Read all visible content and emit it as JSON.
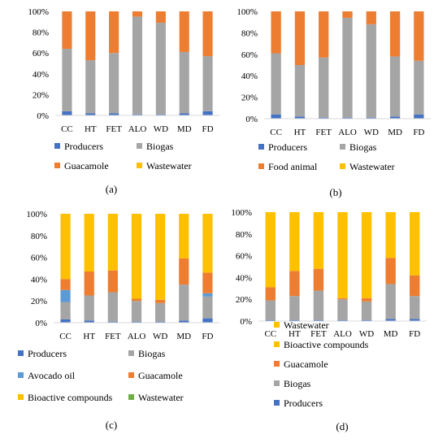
{
  "colors": {
    "producers": "#4472C4",
    "biogas": "#A5A5A5",
    "avocado_oil": "#5B9BD5",
    "guacamole": "#ED7D31",
    "food_animal": "#ED7D31",
    "bioactive": "#FFC000",
    "wastewater": "#70AD47",
    "wastewater_b": "#FFC000",
    "axis": "#D9D9D9"
  },
  "chart_data": [
    {
      "panel": "(a)",
      "type": "bar",
      "stacked": true,
      "categories": [
        "CC",
        "HT",
        "FET",
        "ALO",
        "WD",
        "MD",
        "FD"
      ],
      "ylim": [
        0,
        100
      ],
      "yticks": [
        "0%",
        "20%",
        "40%",
        "60%",
        "80%",
        "100%"
      ],
      "series": [
        {
          "name": "Producers",
          "color_key": "producers",
          "values": [
            4,
            2,
            2,
            1,
            1,
            2,
            4
          ]
        },
        {
          "name": "Biogas",
          "color_key": "biogas",
          "values": [
            60,
            51,
            58,
            94,
            88,
            59,
            53
          ]
        },
        {
          "name": "Guacamole",
          "color_key": "guacamole",
          "values": [
            36,
            47,
            40,
            5,
            11,
            39,
            43
          ]
        },
        {
          "name": "Wastewater",
          "color_key": "bioactive",
          "values": [
            0,
            0,
            0,
            0,
            0,
            0,
            0
          ]
        }
      ],
      "legend": [
        "Producers",
        "Biogas",
        "Guacamole",
        "Wastewater"
      ]
    },
    {
      "panel": "(b)",
      "type": "bar",
      "stacked": true,
      "categories": [
        "CC",
        "HT",
        "FET",
        "ALO",
        "WD",
        "MD",
        "FD"
      ],
      "ylim": [
        0,
        100
      ],
      "yticks": [
        "0%",
        "20%",
        "40%",
        "60%",
        "80%",
        "100%"
      ],
      "series": [
        {
          "name": "Producers",
          "color_key": "producers",
          "values": [
            4,
            2,
            1,
            1,
            1,
            2,
            4
          ]
        },
        {
          "name": "Biogas",
          "color_key": "biogas",
          "values": [
            57,
            48,
            56,
            93,
            87,
            56,
            50
          ]
        },
        {
          "name": "Food animal",
          "color_key": "food_animal",
          "values": [
            39,
            50,
            43,
            6,
            12,
            42,
            46
          ]
        },
        {
          "name": "Wastewater",
          "color_key": "bioactive",
          "values": [
            0,
            0,
            0,
            0,
            0,
            0,
            0
          ]
        }
      ],
      "legend": [
        "Producers",
        "Biogas",
        "Food animal",
        "Wastewater"
      ]
    },
    {
      "panel": "(c)",
      "type": "bar",
      "stacked": true,
      "categories": [
        "CC",
        "HT",
        "FET",
        "ALO",
        "WD",
        "MD",
        "FD"
      ],
      "ylim": [
        0,
        100
      ],
      "yticks": [
        "0%",
        "20%",
        "40%",
        "60%",
        "80%",
        "100%"
      ],
      "series": [
        {
          "name": "Producers",
          "color_key": "producers",
          "values": [
            3,
            2,
            1,
            1,
            1,
            2,
            4
          ]
        },
        {
          "name": "Biogas",
          "color_key": "biogas",
          "values": [
            16,
            23,
            27,
            19,
            17,
            33,
            20
          ]
        },
        {
          "name": "Avocado oil",
          "color_key": "avocado_oil",
          "values": [
            11,
            0,
            0,
            0,
            0,
            0,
            3
          ]
        },
        {
          "name": "Guacamole",
          "color_key": "guacamole",
          "values": [
            10,
            22,
            20,
            2,
            3,
            24,
            19
          ]
        },
        {
          "name": "Bioactive compounds",
          "color_key": "bioactive",
          "values": [
            60,
            53,
            52,
            78,
            79,
            41,
            54
          ]
        },
        {
          "name": "Wastewater",
          "color_key": "wastewater",
          "values": [
            0,
            0,
            0,
            0,
            0,
            0,
            0
          ]
        }
      ],
      "legend": [
        "Producers",
        "Biogas",
        "Avocado oil",
        "Guacamole",
        "Bioactive compounds",
        "Wastewater"
      ]
    },
    {
      "panel": "(d)",
      "type": "bar",
      "stacked": true,
      "categories": [
        "CC",
        "HT",
        "FET",
        "ALO",
        "WD",
        "MD",
        "FD"
      ],
      "ylim": [
        0,
        100
      ],
      "yticks": [
        "0%",
        "20%",
        "40%",
        "60%",
        "80%",
        "100%"
      ],
      "series": [
        {
          "name": "Producers",
          "color_key": "producers",
          "values": [
            1,
            1,
            1,
            1,
            1,
            2,
            2
          ]
        },
        {
          "name": "Biogas",
          "color_key": "biogas",
          "values": [
            18,
            22,
            27,
            19,
            17,
            32,
            21
          ]
        },
        {
          "name": "Guacamole",
          "color_key": "guacamole",
          "values": [
            12,
            23,
            20,
            1,
            3,
            24,
            19
          ]
        },
        {
          "name": "Bioactive compounds",
          "color_key": "bioactive",
          "values": [
            69,
            54,
            52,
            79,
            79,
            42,
            58
          ]
        },
        {
          "name": "Wastewater",
          "color_key": "wastewater_b",
          "values": [
            0,
            0,
            0,
            0,
            0,
            0,
            0
          ]
        }
      ],
      "legend": [
        "Wastewater",
        "Bioactive compounds",
        "Guacamole",
        "Biogas",
        "Producers"
      ]
    }
  ]
}
